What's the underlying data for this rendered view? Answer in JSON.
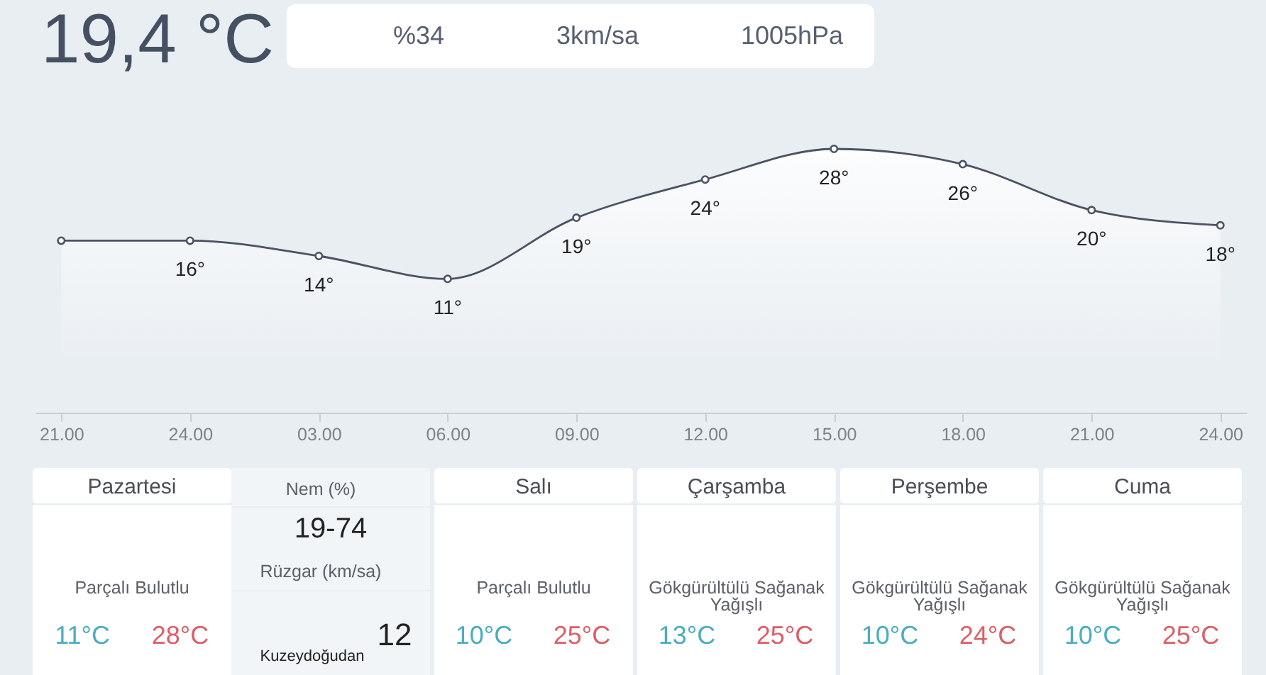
{
  "chart_data": [
    {
      "type": "other",
      "title": "19,4 °C",
      "annotations": [
        "%34",
        "3km/sa",
        "1005hPa"
      ]
    },
    {
      "type": "area",
      "categories": [
        "21.00",
        "24.00",
        "03.00",
        "06.00",
        "09.00",
        "12.00",
        "15.00",
        "18.00",
        "21.00",
        "24.00"
      ],
      "series": [
        {
          "color": "#4b5263",
          "values": [
            16,
            16,
            14,
            11,
            19,
            24,
            28,
            26,
            20,
            18
          ],
          "value_labels": [
            null,
            "16°",
            "14°",
            "11°",
            "19°",
            "24°",
            "28°",
            "26°",
            "20°",
            "18°"
          ]
        }
      ],
      "marker": "circle",
      "tick_labels": "x"
    },
    {
      "type": "other",
      "title": "Pazartesi",
      "annotations": [
        "Parçalı Bulutlu",
        "11°C",
        "28°C"
      ]
    },
    {
      "type": "other",
      "annotations": [
        "Nem (%)",
        "19-74",
        "Rüzgar (km/sa)",
        "12",
        "Kuzeydoğudan"
      ]
    },
    {
      "type": "other",
      "title": "Salı",
      "annotations": [
        "Parçalı Bulutlu",
        "10°C",
        "25°C"
      ]
    },
    {
      "type": "other",
      "title": "Çarşamba",
      "annotations": [
        "Gökgürültülü Sağanak Yağışlı",
        "13°C",
        "25°C"
      ]
    },
    {
      "type": "other",
      "title": "Perşembe",
      "annotations": [
        "Gökgürültülü Sağanak Yağışlı",
        "10°C",
        "24°C"
      ]
    },
    {
      "type": "other",
      "title": "Cuma",
      "annotations": [
        "Gökgürültülü Sağanak Yağışlı",
        "10°C",
        "25°C"
      ]
    }
  ]
}
